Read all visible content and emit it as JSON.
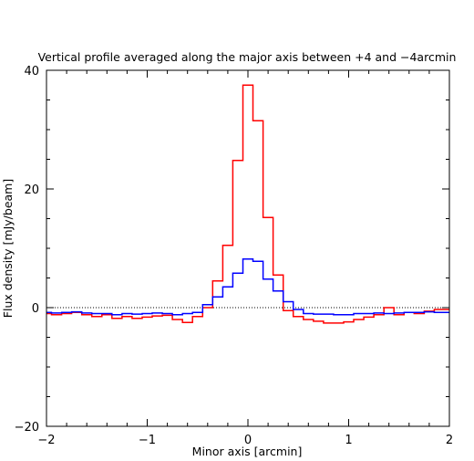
{
  "chart_data": {
    "type": "line",
    "step": true,
    "title": "Vertical profile averaged along the major axis between +4 and −4arcmin",
    "xlabel": "Minor axis [arcmin]",
    "ylabel": "Flux density [mJy/beam]",
    "xlim": [
      -2,
      2
    ],
    "ylim": [
      -20,
      40
    ],
    "xticks": [
      -2,
      -1,
      0,
      1,
      2
    ],
    "yticks": [
      -20,
      0,
      20,
      40
    ],
    "xtick_labels": [
      "−2",
      "−1",
      "0",
      "1",
      "2"
    ],
    "ytick_labels": [
      "−20",
      "0",
      "20",
      "40"
    ],
    "reference_line": {
      "y": 0,
      "style": "dotted",
      "color": "#000000"
    },
    "bin_width": 0.1,
    "series": [
      {
        "color": "#ff0000",
        "x": [
          -2.0,
          -1.9,
          -1.8,
          -1.7,
          -1.6,
          -1.5,
          -1.4,
          -1.3,
          -1.2,
          -1.1,
          -1.0,
          -0.9,
          -0.8,
          -0.7,
          -0.6,
          -0.5,
          -0.4,
          -0.3,
          -0.2,
          -0.1,
          0.0,
          0.1,
          0.2,
          0.3,
          0.4,
          0.5,
          0.6,
          0.7,
          0.8,
          0.9,
          1.0,
          1.1,
          1.2,
          1.3,
          1.4,
          1.5,
          1.6,
          1.7,
          1.8,
          1.9,
          2.0
        ],
        "values": [
          -1.0,
          -1.2,
          -1.0,
          -0.8,
          -1.2,
          -1.5,
          -1.2,
          -1.8,
          -1.5,
          -1.8,
          -1.6,
          -1.4,
          -1.3,
          -2.0,
          -2.5,
          -1.5,
          0.0,
          4.5,
          10.5,
          24.8,
          37.5,
          31.5,
          15.2,
          5.5,
          -0.5,
          -1.5,
          -2.0,
          -2.3,
          -2.6,
          -2.6,
          -2.4,
          -2.0,
          -1.6,
          -1.2,
          0.0,
          -1.2,
          -0.8,
          -1.0,
          -0.6,
          -0.3,
          -0.3
        ]
      },
      {
        "color": "#0000ff",
        "x": [
          -2.0,
          -1.9,
          -1.8,
          -1.7,
          -1.6,
          -1.5,
          -1.4,
          -1.3,
          -1.2,
          -1.1,
          -1.0,
          -0.9,
          -0.8,
          -0.7,
          -0.6,
          -0.5,
          -0.4,
          -0.3,
          -0.2,
          -0.1,
          0.0,
          0.1,
          0.2,
          0.3,
          0.4,
          0.5,
          0.6,
          0.7,
          0.8,
          0.9,
          1.0,
          1.1,
          1.2,
          1.3,
          1.4,
          1.5,
          1.6,
          1.7,
          1.8,
          1.9,
          2.0
        ],
        "values": [
          -0.8,
          -0.9,
          -0.8,
          -0.7,
          -0.9,
          -1.0,
          -1.0,
          -1.2,
          -1.0,
          -1.1,
          -1.0,
          -0.9,
          -1.0,
          -1.2,
          -1.0,
          -0.8,
          0.5,
          1.8,
          3.5,
          5.8,
          8.2,
          7.8,
          4.8,
          2.8,
          1.0,
          -0.3,
          -1.0,
          -1.1,
          -1.1,
          -1.2,
          -1.2,
          -1.0,
          -1.0,
          -0.9,
          -1.0,
          -0.9,
          -0.8,
          -0.8,
          -0.7,
          -0.8,
          -0.8
        ]
      }
    ]
  }
}
